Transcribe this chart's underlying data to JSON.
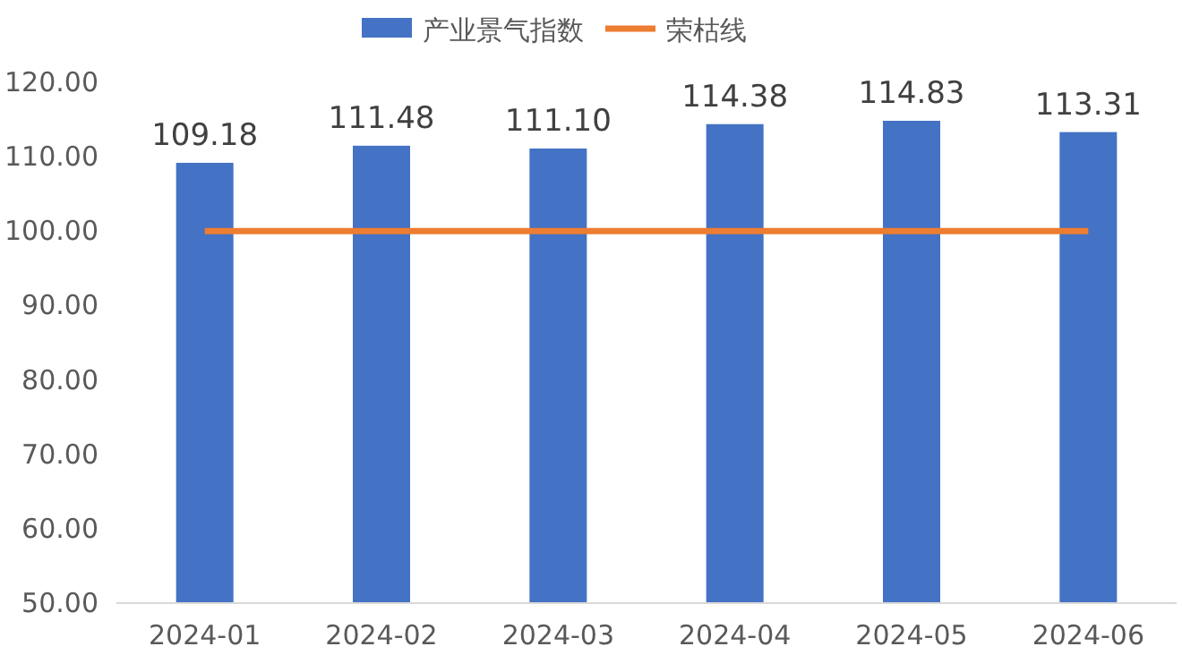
{
  "chart_data": {
    "type": "bar",
    "categories": [
      "2024-01",
      "2024-02",
      "2024-03",
      "2024-04",
      "2024-05",
      "2024-06"
    ],
    "series": [
      {
        "name": "产业景气指数",
        "color": "#4472c4",
        "values": [
          109.18,
          111.48,
          111.1,
          114.38,
          114.83,
          113.31
        ],
        "value_labels": [
          "109.18",
          "111.48",
          "111.10",
          "114.38",
          "114.83",
          "113.31"
        ]
      },
      {
        "name": "荣枯线",
        "type": "line",
        "color": "#ed7d31",
        "values": [
          100,
          100,
          100,
          100,
          100,
          100
        ]
      }
    ],
    "ylim": [
      50,
      120
    ],
    "yticks": [
      {
        "value": 50,
        "label": "50.00"
      },
      {
        "value": 60,
        "label": "60.00"
      },
      {
        "value": 70,
        "label": "70.00"
      },
      {
        "value": 80,
        "label": "80.00"
      },
      {
        "value": 90,
        "label": "90.00"
      },
      {
        "value": 100,
        "label": "100.00"
      },
      {
        "value": 110,
        "label": "110.00"
      },
      {
        "value": 120,
        "label": "120.00"
      }
    ],
    "legend": "top"
  }
}
